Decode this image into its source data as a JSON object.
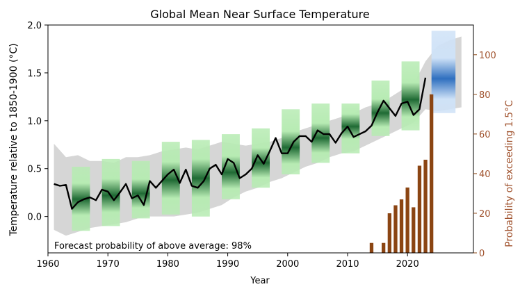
{
  "chart_data": {
    "type": "line",
    "title": "Global Mean Near Surface Temperature",
    "xlabel": "Year",
    "ylabel": "Temperature relative to 1850-1900 (°C)",
    "y2label": "Probability of exceeding 1.5°C",
    "annotation": "Forecast probability of above average: 98%",
    "xlim": [
      1960,
      2031
    ],
    "ylim": [
      -0.38,
      2.0
    ],
    "y2lim": [
      0,
      115
    ],
    "x_ticks": [
      1960,
      1970,
      1980,
      1990,
      2000,
      2010,
      2020
    ],
    "y_ticks": [
      0.0,
      0.5,
      1.0,
      1.5,
      2.0
    ],
    "y_tick_labels": [
      "0.0",
      "0.5",
      "1.0",
      "1.5",
      "2.0"
    ],
    "y2_ticks": [
      0,
      20,
      40,
      60,
      80,
      100
    ],
    "colors": {
      "observed": "#000000",
      "hindcast_band": "#d6d6d6",
      "forecast_ensemble": "#1f6a34",
      "forecast_ensemble_light": "#b7ebb3",
      "future_forecast": "#2f6fbf",
      "future_forecast_light": "#cfe2f7",
      "probability": "#8b4513"
    },
    "series": [
      {
        "name": "Observed",
        "x": [
          1961,
          1962,
          1963,
          1964,
          1965,
          1966,
          1967,
          1968,
          1969,
          1970,
          1971,
          1972,
          1973,
          1974,
          1975,
          1976,
          1977,
          1978,
          1979,
          1980,
          1981,
          1982,
          1983,
          1984,
          1985,
          1986,
          1987,
          1988,
          1989,
          1990,
          1991,
          1992,
          1993,
          1994,
          1995,
          1996,
          1997,
          1998,
          1999,
          2000,
          2001,
          2002,
          2003,
          2004,
          2005,
          2006,
          2007,
          2008,
          2009,
          2010,
          2011,
          2012,
          2013,
          2014,
          2015,
          2016,
          2017,
          2018,
          2019,
          2020,
          2021,
          2022,
          2023
        ],
        "values": [
          0.34,
          0.32,
          0.33,
          0.08,
          0.15,
          0.18,
          0.2,
          0.17,
          0.28,
          0.26,
          0.17,
          0.25,
          0.34,
          0.19,
          0.22,
          0.12,
          0.37,
          0.3,
          0.37,
          0.44,
          0.49,
          0.35,
          0.49,
          0.32,
          0.3,
          0.37,
          0.5,
          0.54,
          0.44,
          0.6,
          0.56,
          0.4,
          0.44,
          0.5,
          0.64,
          0.55,
          0.68,
          0.82,
          0.66,
          0.66,
          0.78,
          0.84,
          0.84,
          0.78,
          0.9,
          0.86,
          0.86,
          0.77,
          0.87,
          0.94,
          0.83,
          0.86,
          0.89,
          0.95,
          1.09,
          1.21,
          1.13,
          1.05,
          1.18,
          1.2,
          1.06,
          1.12,
          1.45
        ]
      },
      {
        "name": "Hindcast range upper",
        "x": [
          1961,
          1963,
          1965,
          1967,
          1969,
          1971,
          1973,
          1975,
          1977,
          1979,
          1981,
          1983,
          1985,
          1987,
          1989,
          1991,
          1993,
          1995,
          1997,
          1999,
          2001,
          2003,
          2005,
          2007,
          2009,
          2011,
          2013,
          2015,
          2017,
          2019,
          2021,
          2023,
          2025,
          2027,
          2029
        ],
        "values": [
          0.76,
          0.62,
          0.64,
          0.58,
          0.58,
          0.56,
          0.62,
          0.62,
          0.64,
          0.68,
          0.7,
          0.72,
          0.7,
          0.74,
          0.78,
          0.76,
          0.74,
          0.76,
          0.78,
          0.82,
          0.88,
          0.92,
          0.96,
          1.0,
          1.04,
          1.08,
          1.14,
          1.18,
          1.24,
          1.32,
          1.38,
          1.62,
          1.78,
          1.84,
          1.88
        ]
      },
      {
        "name": "Hindcast range lower",
        "x": [
          1961,
          1963,
          1965,
          1967,
          1969,
          1971,
          1973,
          1975,
          1977,
          1979,
          1981,
          1983,
          1985,
          1987,
          1989,
          1991,
          1993,
          1995,
          1997,
          1999,
          2001,
          2003,
          2005,
          2007,
          2009,
          2011,
          2013,
          2015,
          2017,
          2019,
          2021,
          2023,
          2025,
          2027,
          2029
        ],
        "values": [
          -0.14,
          -0.2,
          -0.16,
          -0.12,
          -0.1,
          -0.08,
          -0.06,
          -0.02,
          0.0,
          0.0,
          0.0,
          0.02,
          0.04,
          0.08,
          0.12,
          0.2,
          0.26,
          0.3,
          0.36,
          0.4,
          0.46,
          0.52,
          0.56,
          0.62,
          0.66,
          0.68,
          0.74,
          0.8,
          0.86,
          0.92,
          0.98,
          1.12,
          1.1,
          1.12,
          1.14
        ]
      }
    ],
    "forecast_boxes": [
      {
        "x0": 1964,
        "x1": 1967,
        "lo": -0.15,
        "mid": 0.18,
        "hi": 0.52
      },
      {
        "x0": 1969,
        "x1": 1972,
        "lo": -0.1,
        "mid": 0.22,
        "hi": 0.6
      },
      {
        "x0": 1974,
        "x1": 1977,
        "lo": -0.02,
        "mid": 0.24,
        "hi": 0.58
      },
      {
        "x0": 1979,
        "x1": 1982,
        "lo": 0.02,
        "mid": 0.38,
        "hi": 0.78
      },
      {
        "x0": 1984,
        "x1": 1987,
        "lo": 0.0,
        "mid": 0.4,
        "hi": 0.8
      },
      {
        "x0": 1989,
        "x1": 1992,
        "lo": 0.18,
        "mid": 0.46,
        "hi": 0.86
      },
      {
        "x0": 1994,
        "x1": 1997,
        "lo": 0.3,
        "mid": 0.56,
        "hi": 0.92
      },
      {
        "x0": 1999,
        "x1": 2002,
        "lo": 0.44,
        "mid": 0.72,
        "hi": 1.12
      },
      {
        "x0": 2004,
        "x1": 2007,
        "lo": 0.56,
        "mid": 0.82,
        "hi": 1.18
      },
      {
        "x0": 2009,
        "x1": 2012,
        "lo": 0.66,
        "mid": 0.94,
        "hi": 1.18
      },
      {
        "x0": 2014,
        "x1": 2017,
        "lo": 0.84,
        "mid": 1.08,
        "hi": 1.42
      },
      {
        "x0": 2019,
        "x1": 2022,
        "lo": 0.9,
        "mid": 1.22,
        "hi": 1.62
      }
    ],
    "future_forecast": {
      "x0": 2024,
      "x1": 2028,
      "lo": 1.08,
      "mid": 1.44,
      "hi": 1.94
    },
    "probability_bars": {
      "name": "Probability of exceeding 1.5°C",
      "x": [
        2014,
        2016,
        2017,
        2018,
        2019,
        2020,
        2021,
        2022,
        2023,
        2024
      ],
      "values": [
        5,
        5,
        20,
        24,
        27,
        33,
        23,
        44,
        47,
        80
      ]
    }
  }
}
